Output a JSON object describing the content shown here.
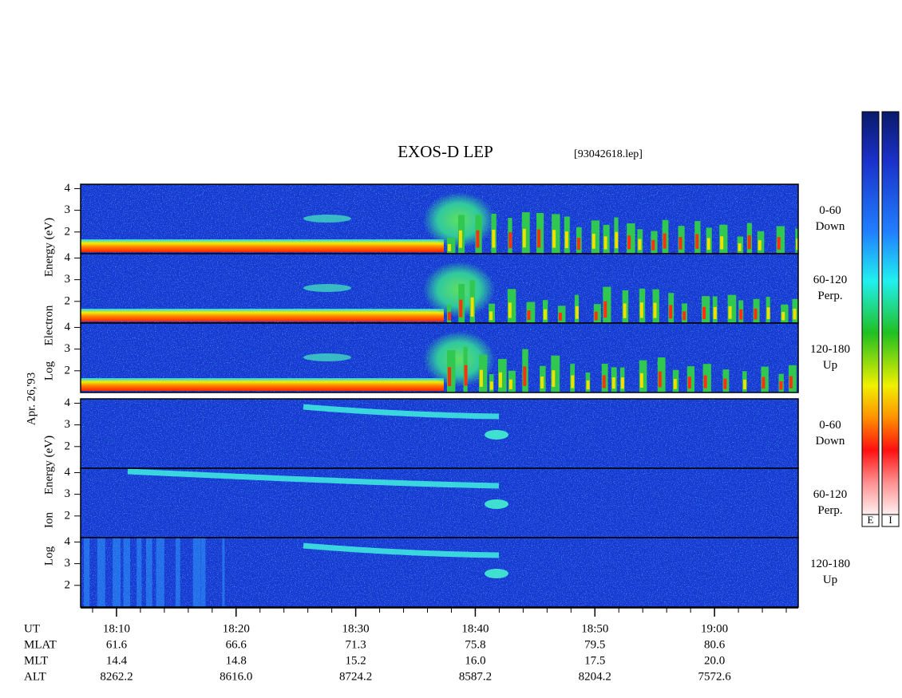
{
  "chart_data": {
    "type": "spectrogram",
    "title": "EXOS-D LEP",
    "subtitle": "[93042618.lep]",
    "date": "Apr. 26,'93",
    "groups": [
      {
        "ylabel": [
          "Log",
          "Electron",
          "Energy (eV)"
        ],
        "panels": [
          {
            "label": [
              "0-60",
              "Down"
            ]
          },
          {
            "label": [
              "60-120",
              "Perp."
            ]
          },
          {
            "label": [
              "120-180",
              "Up"
            ]
          }
        ]
      },
      {
        "ylabel": [
          "Log",
          "Ion",
          "Energy (eV)"
        ],
        "panels": [
          {
            "label": [
              "0-60",
              "Down"
            ]
          },
          {
            "label": [
              "60-120",
              "Perp."
            ]
          },
          {
            "label": [
              "120-180",
              "Up"
            ]
          }
        ]
      }
    ],
    "ylim": [
      1,
      4.2
    ],
    "yticks": [
      2,
      3,
      4
    ],
    "xlim": [
      1087,
      1147
    ],
    "xticks": [
      {
        "value": 1090,
        "label": "18:10"
      },
      {
        "value": 1100,
        "label": "18:20"
      },
      {
        "value": 1110,
        "label": "18:30"
      },
      {
        "value": 1120,
        "label": "18:40"
      },
      {
        "value": 1130,
        "label": "18:50"
      },
      {
        "value": 1140,
        "label": "19:00"
      }
    ],
    "x_table": {
      "header": "UT",
      "rows": [
        {
          "label": "MLAT",
          "values": [
            "61.6",
            "66.6",
            "71.3",
            "75.8",
            "79.5",
            "80.6"
          ]
        },
        {
          "label": "MLT",
          "values": [
            "14.4",
            "14.8",
            "15.2",
            "16.0",
            "17.5",
            "20.0"
          ]
        },
        {
          "label": "ALT",
          "values": [
            "8262.2",
            "8616.0",
            "8724.2",
            "8587.2",
            "8204.2",
            "7572.6"
          ]
        }
      ]
    },
    "colorbars": [
      "E",
      "I"
    ]
  }
}
